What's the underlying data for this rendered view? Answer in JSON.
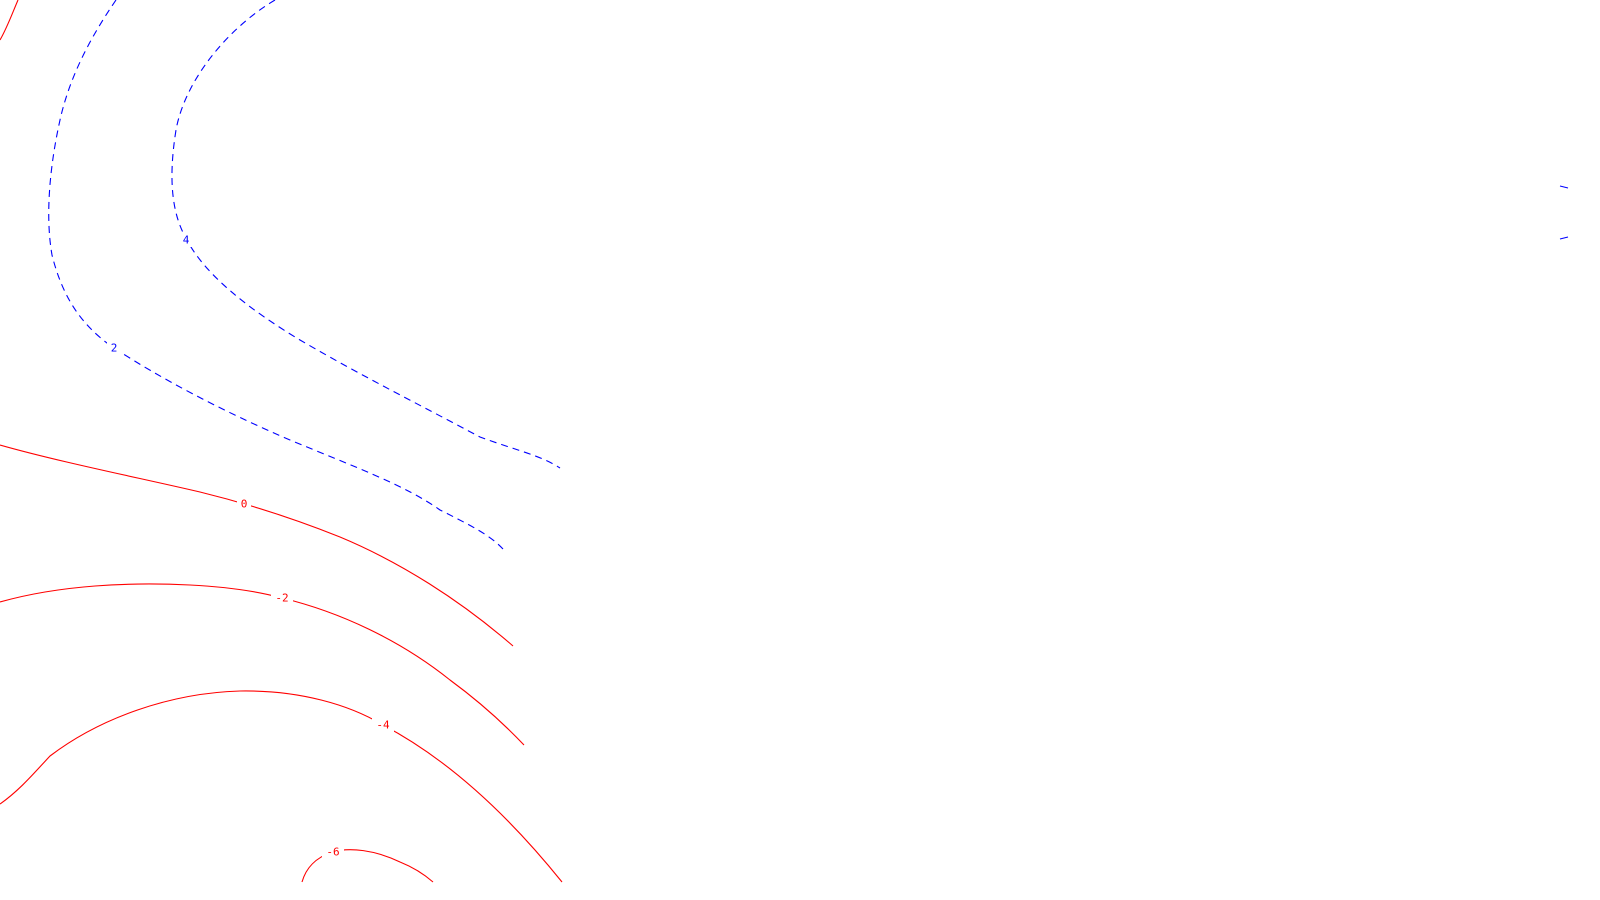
{
  "map": {
    "colors": {
      "positive": "#0000ff",
      "zero": "#ff0000",
      "negative": "#ff0000",
      "background": "#ffffff"
    },
    "contours": [
      {
        "id": "contour-4",
        "level": 4,
        "label": "4",
        "color": "#0000ff",
        "style": "dashed"
      },
      {
        "id": "contour-2",
        "level": 2,
        "label": "2",
        "color": "#0000ff",
        "style": "dashed"
      },
      {
        "id": "contour-0",
        "level": 0,
        "label": "0",
        "color": "#ff0000",
        "style": "solid"
      },
      {
        "id": "contour-neg2",
        "level": -2,
        "label": "-2",
        "color": "#ff0000",
        "style": "solid"
      },
      {
        "id": "contour-neg4",
        "level": -4,
        "label": "-4",
        "color": "#ff0000",
        "style": "solid"
      },
      {
        "id": "contour-neg6",
        "level": -6,
        "label": "-6",
        "color": "#ff0000",
        "style": "solid"
      }
    ]
  }
}
